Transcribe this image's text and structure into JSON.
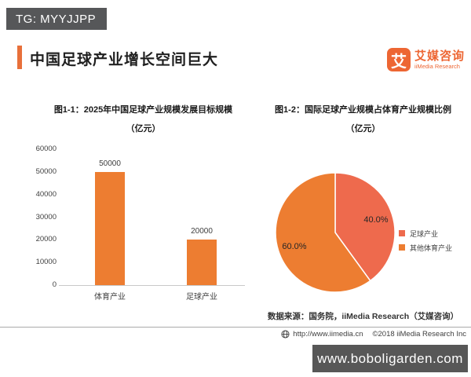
{
  "badge": {
    "text": "TG: MYYJJPP"
  },
  "header": {
    "title": "中国足球产业增长空间巨大",
    "accent_color": "#E8703A"
  },
  "logo": {
    "symbol": "艾",
    "name_cn": "艾媒咨询",
    "name_en": "iiMedia Research",
    "color": "#ED6633"
  },
  "chart_data": [
    {
      "type": "bar",
      "title": "图1-1：2025年中国足球产业规模发展目标规模",
      "subtitle": "（亿元）",
      "categories": [
        "体育产业",
        "足球产业"
      ],
      "values": [
        50000,
        20000
      ],
      "data_labels": [
        "50000",
        "20000"
      ],
      "ylabel": "",
      "ylim": [
        0,
        60000
      ],
      "yticks": [
        0,
        10000,
        20000,
        30000,
        40000,
        50000,
        60000
      ],
      "bar_color": "#ED7D31",
      "grid": false,
      "legend": "none"
    },
    {
      "type": "pie",
      "title": "图1-2：国际足球产业规模占体育产业规模比例",
      "subtitle": "（亿元）",
      "start_angle_deg": 0,
      "direction": "clockwise",
      "legend_position": "right",
      "slices": [
        {
          "label": "足球产业",
          "value": 40.0,
          "display": "40.0%",
          "color": "#EE6A4D"
        },
        {
          "label": "其他体育产业",
          "value": 60.0,
          "display": "60.0%",
          "color": "#ED7D31"
        }
      ]
    }
  ],
  "source_note": "数据来源：国务院，iiMedia Research（艾媒咨询）",
  "footer": {
    "url": "http://www.iimedia.cn",
    "copyright": "©2018  iiMedia Research  Inc"
  },
  "watermark": {
    "text": "www.boboligarden.com"
  },
  "colors": {
    "accent_orange": "#ED7D31",
    "pie_red_orange": "#EE6A4D",
    "badge_bg": "#565759",
    "watermark_bg": "#575757"
  }
}
